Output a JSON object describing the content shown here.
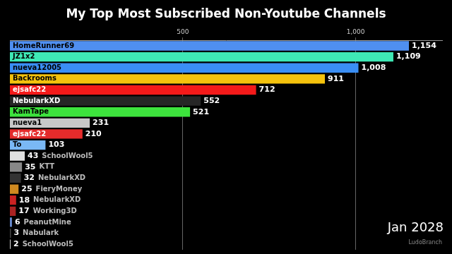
{
  "chart_data": {
    "type": "bar",
    "orientation": "horizontal",
    "title": "My Top Most Subscribed Non-Youtube Channels",
    "categories": [
      "HomeRunner69",
      "JZ1x2",
      "nueva12005",
      "Backrooms",
      "ejsafc22",
      "NebularkXD",
      "KamTape",
      "nueva1",
      "ejsafc22",
      "To",
      "SchoolWool5",
      "KTT",
      "NebularkXD",
      "FieryMoney",
      "NebularkXD",
      "Working3D",
      "PeanutMine",
      "Nabulark",
      "SchoolWool5"
    ],
    "values": [
      1154,
      1109,
      1008,
      911,
      712,
      552,
      521,
      231,
      210,
      103,
      43,
      35,
      32,
      25,
      18,
      17,
      6,
      3,
      2
    ],
    "value_labels": [
      "1,154",
      "1,109",
      "1,008",
      "911",
      "712",
      "552",
      "521",
      "231",
      "210",
      "103",
      "43",
      "35",
      "32",
      "25",
      "18",
      "17",
      "6",
      "3",
      "2"
    ],
    "colors": [
      "#4f8ff0",
      "#3ee8b5",
      "#3a8ef5",
      "#f4c20d",
      "#f41a1a",
      "#262626",
      "#3de33d",
      "#c8c8c8",
      "#e52b2b",
      "#7ab8f5",
      "#e0e0e0",
      "#888888",
      "#333333",
      "#d08a20",
      "#cc2222",
      "#aa2222",
      "#6688cc",
      "#444444",
      "#dddddd"
    ],
    "xlim": [
      0,
      1250
    ],
    "xticks": [
      500,
      {
        "value": 1000,
        "label": "1,000"
      }
    ],
    "grid": true,
    "data_labels": true,
    "tick_labels": "x",
    "annotations": [
      "Jan 2028",
      "LudoBranch"
    ]
  }
}
